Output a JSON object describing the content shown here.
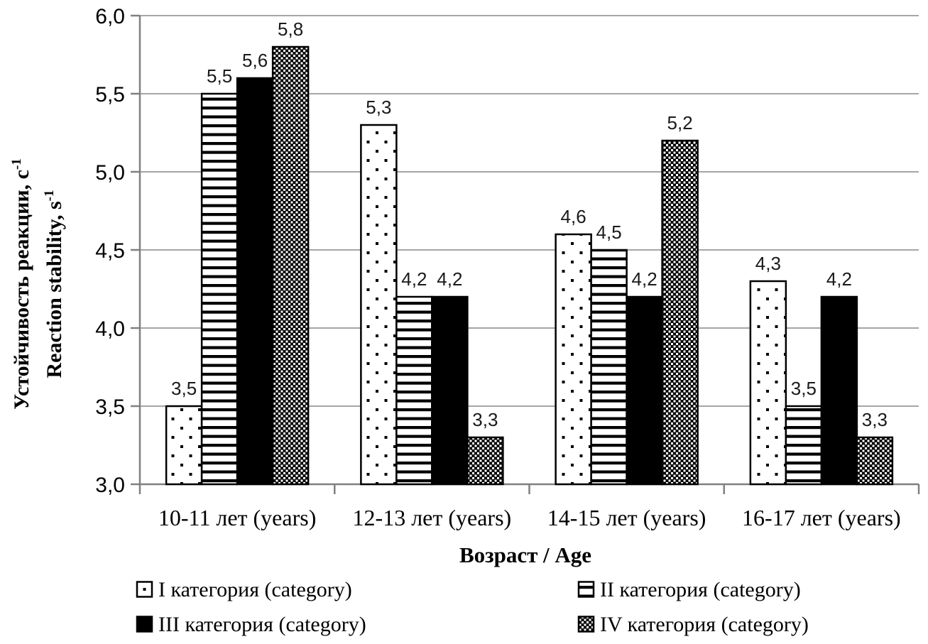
{
  "page": {
    "background": "#ffffff"
  },
  "chart_data": {
    "type": "bar",
    "title": "",
    "xlabel": "Возраст / Age",
    "ylabel_ru": {
      "main": "Устойчивость реакции, с",
      "sup": "-1"
    },
    "ylabel_en": {
      "main": "Reaction stability, s",
      "sup": "-1"
    },
    "categories": [
      "10-11 лет (years)",
      "12-13 лет (years)",
      "14-15 лет (years)",
      "16-17 лет (years)"
    ],
    "series": [
      {
        "name": "I категория (category)",
        "pattern": "dots",
        "values": [
          3.5,
          5.3,
          4.6,
          4.3
        ]
      },
      {
        "name": "II категория (category)",
        "pattern": "hlines",
        "values": [
          5.5,
          4.2,
          4.5,
          3.5
        ]
      },
      {
        "name": "III категория (category)",
        "pattern": "solid",
        "values": [
          5.6,
          4.2,
          4.2,
          4.2
        ]
      },
      {
        "name": "IV категория (category)",
        "pattern": "checker",
        "values": [
          5.8,
          3.3,
          5.2,
          3.3
        ]
      }
    ],
    "ylim": [
      3.0,
      6.0
    ],
    "ytick_step": 0.5,
    "ytick_labels": [
      "6,0",
      "5,5",
      "5,0",
      "4,5",
      "4,0",
      "3,5",
      "3,0"
    ],
    "decimal_separator": ",",
    "grid": true,
    "legend_position": "bottom",
    "colors": {
      "bar": "#000000",
      "bar_fill_bg": "#ffffff",
      "gridline": "#a6a6a6",
      "axis": "#808080",
      "value_label": "#1a1a1a",
      "text": "#000000"
    }
  }
}
